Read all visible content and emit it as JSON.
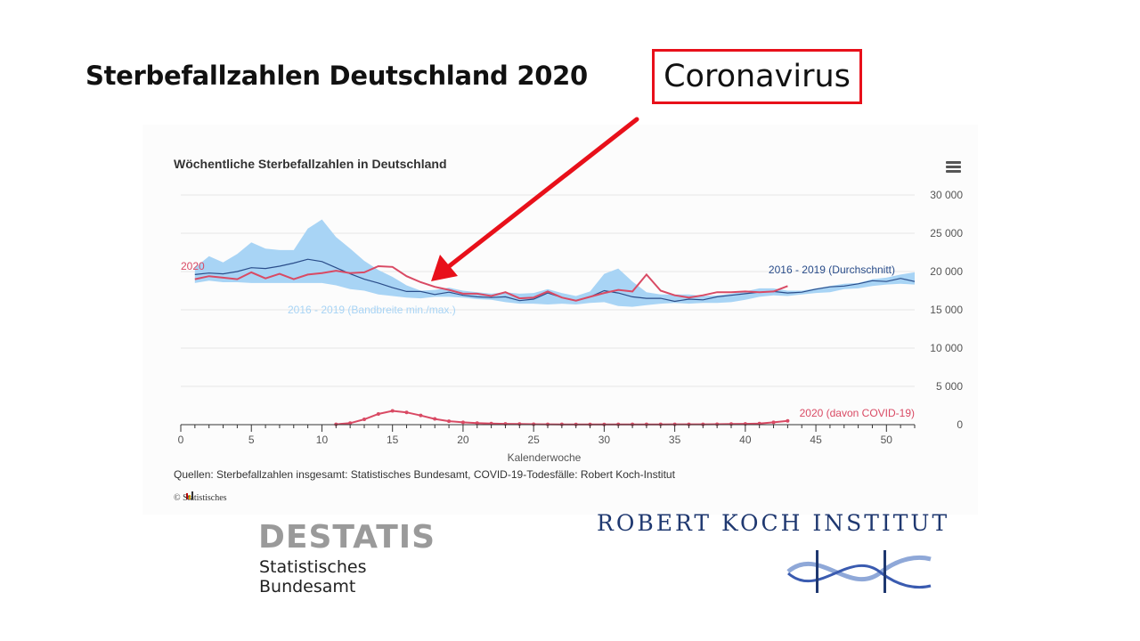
{
  "slide": {
    "title": "Sterbefallzahlen Deutschland 2020",
    "callout": "Coronavirus"
  },
  "chart_data": {
    "type": "line",
    "title": "Wöchentliche Sterbefallzahlen in Deutschland",
    "xlabel": "Kalenderwoche",
    "xlim": [
      0,
      52
    ],
    "ylim": [
      0,
      30000
    ],
    "x_ticks": [
      0,
      5,
      10,
      15,
      20,
      25,
      30,
      35,
      40,
      45,
      50
    ],
    "y_ticks": [
      0,
      5000,
      10000,
      15000,
      20000,
      25000,
      30000
    ],
    "y_tick_labels": [
      "0",
      "5 000",
      "10 000",
      "15 000",
      "20 000",
      "25 000",
      "30 000"
    ],
    "y_axis_position": "right",
    "grid": true,
    "band": {
      "name": "2016 - 2019 (Bandbreite min./max.)",
      "color": "#a8d4f5",
      "x": [
        1,
        2,
        3,
        4,
        5,
        6,
        7,
        8,
        9,
        10,
        11,
        12,
        13,
        14,
        15,
        16,
        17,
        18,
        19,
        20,
        21,
        22,
        23,
        24,
        25,
        26,
        27,
        28,
        29,
        30,
        31,
        32,
        33,
        34,
        35,
        36,
        37,
        38,
        39,
        40,
        41,
        42,
        43,
        44,
        45,
        46,
        47,
        48,
        49,
        50,
        51,
        52
      ],
      "min": [
        18500,
        18800,
        18600,
        18600,
        18500,
        18500,
        18500,
        18500,
        18500,
        18500,
        18200,
        17700,
        17500,
        17000,
        16800,
        16600,
        16500,
        16700,
        16700,
        16600,
        16400,
        16300,
        16000,
        15800,
        15800,
        15700,
        15800,
        15700,
        15900,
        16000,
        15500,
        15400,
        15600,
        15800,
        15900,
        15800,
        15900,
        15900,
        16000,
        16300,
        16700,
        16900,
        16800,
        17000,
        17200,
        17300,
        17700,
        17800,
        18100,
        18300,
        18400,
        18300
      ],
      "max": [
        20500,
        22000,
        21200,
        22300,
        23800,
        23000,
        22800,
        22800,
        25600,
        26800,
        24500,
        23000,
        21400,
        20200,
        19300,
        18200,
        17500,
        17600,
        17900,
        17500,
        17300,
        17100,
        17300,
        17100,
        17200,
        17700,
        17200,
        16800,
        17400,
        19700,
        20400,
        18700,
        17300,
        17000,
        17000,
        17000,
        16800,
        16900,
        17100,
        17400,
        17800,
        17800,
        17500,
        17500,
        17800,
        18100,
        18400,
        18500,
        19000,
        19200,
        19600,
        19900
      ]
    },
    "series": [
      {
        "name": "2016 - 2019 (Durchschnitt)",
        "color": "#2a4d8a",
        "x": [
          1,
          2,
          3,
          4,
          5,
          6,
          7,
          8,
          9,
          10,
          11,
          12,
          13,
          14,
          15,
          16,
          17,
          18,
          19,
          20,
          21,
          22,
          23,
          24,
          25,
          26,
          27,
          28,
          29,
          30,
          31,
          32,
          33,
          34,
          35,
          36,
          37,
          38,
          39,
          40,
          41,
          42,
          43,
          44,
          45,
          46,
          47,
          48,
          49,
          50,
          51,
          52
        ],
        "values": [
          19600,
          19800,
          19700,
          20000,
          20500,
          20400,
          20700,
          21100,
          21600,
          21300,
          20500,
          19700,
          19000,
          18500,
          17900,
          17400,
          17400,
          17000,
          17300,
          16900,
          16700,
          16600,
          16700,
          16200,
          16400,
          17200,
          16600,
          16200,
          16700,
          17500,
          17200,
          16700,
          16500,
          16500,
          16100,
          16400,
          16300,
          16700,
          16900,
          17100,
          17300,
          17400,
          17200,
          17300,
          17700,
          18000,
          18100,
          18400,
          18800,
          18700,
          19100,
          18700
        ]
      },
      {
        "name": "2020",
        "color": "#d94a64",
        "x": [
          1,
          2,
          3,
          4,
          5,
          6,
          7,
          8,
          9,
          10,
          11,
          12,
          13,
          14,
          15,
          16,
          17,
          18,
          19,
          20,
          21,
          22,
          23,
          24,
          25,
          26,
          27,
          28,
          29,
          30,
          31,
          32,
          33,
          34,
          35,
          36,
          37,
          38,
          39,
          40,
          41,
          42,
          43
        ],
        "values": [
          19000,
          19400,
          19200,
          19000,
          19900,
          19100,
          19700,
          19000,
          19600,
          19800,
          20100,
          19800,
          19900,
          20700,
          20600,
          19400,
          18600,
          18000,
          17600,
          17100,
          17100,
          16800,
          17300,
          16500,
          16600,
          17400,
          16600,
          16200,
          16700,
          17200,
          17600,
          17400,
          19600,
          17500,
          16900,
          16600,
          16900,
          17300,
          17300,
          17400,
          17300,
          17400,
          18100
        ]
      },
      {
        "name": "2020 (davon COVID-19)",
        "color": "#d94a64",
        "x": [
          11,
          12,
          13,
          14,
          15,
          16,
          17,
          18,
          19,
          20,
          21,
          22,
          23,
          24,
          25,
          26,
          27,
          28,
          29,
          30,
          31,
          32,
          33,
          34,
          35,
          36,
          37,
          38,
          39,
          40,
          41,
          42,
          43
        ],
        "values": [
          50,
          200,
          700,
          1400,
          1800,
          1600,
          1200,
          750,
          450,
          300,
          200,
          150,
          100,
          80,
          60,
          50,
          40,
          30,
          30,
          30,
          40,
          40,
          40,
          40,
          50,
          50,
          50,
          60,
          80,
          100,
          150,
          300,
          500
        ]
      }
    ],
    "labels": {
      "year": "2020",
      "avg": "2016 - 2019 (Durchschnitt)",
      "band": "2016 - 2019 (Bandbreite min./max.)",
      "covid": "2020 (davon COVID-19)"
    },
    "source": "Quellen: Sterbefallzahlen insgesamt: Statistisches Bundesamt, COVID-19-Todesfälle: Robert Koch-Institut",
    "credit": "© Statistisches"
  },
  "logos": {
    "destatis_word": "DESTATIS",
    "destatis_sub": "Statistisches Bundesamt",
    "rki_name": "ROBERT KOCH INSTITUT"
  },
  "colors": {
    "callout_border": "#e8101a",
    "arrow": "#e8101a"
  }
}
